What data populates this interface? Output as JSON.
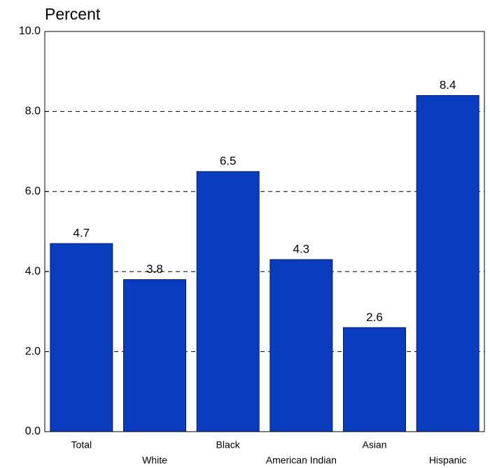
{
  "chart_data": {
    "type": "bar",
    "y_axis_label": "Percent",
    "categories": [
      "Total",
      "White",
      "Black",
      "American Indian",
      "Asian",
      "Hispanic"
    ],
    "values": [
      4.7,
      3.8,
      6.5,
      4.3,
      2.6,
      8.4
    ],
    "value_labels": [
      "4.7",
      "3.8",
      "6.5",
      "4.3",
      "2.6",
      "8.4"
    ],
    "color": "#0a3cc0",
    "ylim": [
      0,
      10
    ],
    "yticks": [
      {
        "value": 0,
        "label": "0.0"
      },
      {
        "value": 2,
        "label": "2.0"
      },
      {
        "value": 4,
        "label": "4.0"
      },
      {
        "value": 6,
        "label": "6.0"
      },
      {
        "value": 8,
        "label": "8.0"
      },
      {
        "value": 10,
        "label": "10.0"
      }
    ],
    "grid": true
  }
}
